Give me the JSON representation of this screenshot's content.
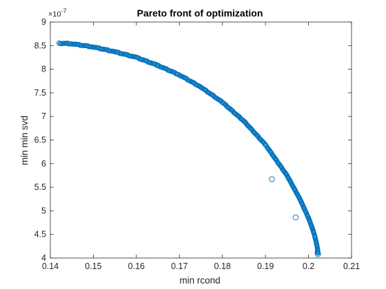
{
  "chart_data": {
    "type": "scatter",
    "title": "Pareto front of optimization",
    "xlabel": "min rcond",
    "ylabel": "min min svd",
    "y_exponent_base": "×10",
    "y_exponent_power": "-7",
    "xlim": [
      0.14,
      0.21
    ],
    "ylim": [
      4,
      9
    ],
    "xticks": [
      "0.14",
      "0.15",
      "0.16",
      "0.17",
      "0.18",
      "0.19",
      "0.2",
      "0.21"
    ],
    "yticks": [
      "4",
      "4.5",
      "5",
      "5.5",
      "6",
      "6.5",
      "7",
      "7.5",
      "8",
      "8.5",
      "9"
    ],
    "grid": false,
    "legend": "none",
    "marker": "circle-open",
    "color": "#0072BD",
    "front": {
      "x": [
        0.142,
        0.145,
        0.15,
        0.155,
        0.16,
        0.165,
        0.17,
        0.175,
        0.18,
        0.185,
        0.19,
        0.195,
        0.198,
        0.2,
        0.201,
        0.2015,
        0.202,
        0.2022
      ],
      "y": [
        8.55,
        8.54,
        8.47,
        8.37,
        8.25,
        8.08,
        7.88,
        7.62,
        7.3,
        6.9,
        6.4,
        5.75,
        5.25,
        4.85,
        4.6,
        4.45,
        4.25,
        4.1
      ]
    },
    "outliers": [
      {
        "x": 0.1915,
        "y": 5.67
      },
      {
        "x": 0.197,
        "y": 4.86
      },
      {
        "x": 0.2021,
        "y": 4.12
      },
      {
        "x": 0.2022,
        "y": 4.08
      }
    ]
  }
}
